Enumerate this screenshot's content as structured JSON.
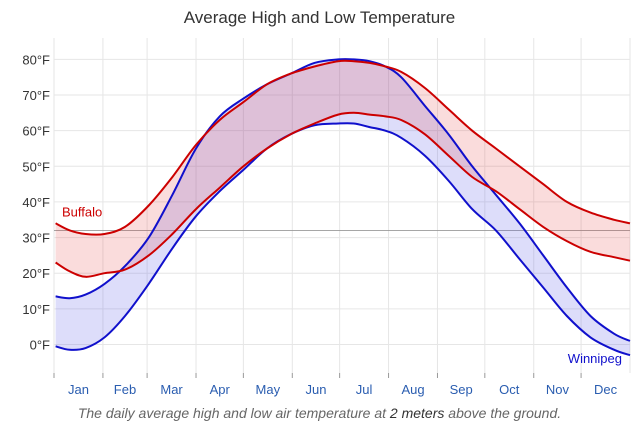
{
  "chart_data": {
    "type": "line",
    "title": "Average High and Low Temperature",
    "caption": {
      "prefix": "The daily average high and low air temperature at ",
      "emphasis": "2 meters",
      "suffix": " above the ground."
    },
    "y_unit_suffix": "°F",
    "ylim": [
      -8,
      86
    ],
    "y_ticks": [
      0,
      10,
      20,
      30,
      40,
      50,
      60,
      70,
      80
    ],
    "freezing_line": 32,
    "months": [
      "Jan",
      "Feb",
      "Mar",
      "Apr",
      "May",
      "Jun",
      "Jul",
      "Aug",
      "Sep",
      "Oct",
      "Nov",
      "Dec"
    ],
    "month_starts": [
      0,
      31,
      59,
      90,
      120,
      151,
      181,
      212,
      243,
      273,
      304,
      334,
      365
    ],
    "grid": true,
    "series": [
      {
        "name": "Buffalo",
        "color": "#cc0000",
        "fill": "rgba(230,60,60,0.18)",
        "label_position": "left",
        "x": [
          1,
          10,
          20,
          32,
          45,
          60,
          75,
          90,
          105,
          120,
          135,
          150,
          165,
          180,
          190,
          200,
          210,
          220,
          235,
          250,
          265,
          280,
          295,
          310,
          325,
          340,
          355,
          365
        ],
        "high": [
          34,
          32,
          31,
          31,
          33,
          39,
          47,
          56,
          63,
          68,
          73,
          76,
          78,
          79.5,
          79.5,
          79,
          78,
          76.5,
          72,
          66,
          60,
          55,
          50,
          45,
          40,
          37,
          35,
          34
        ],
        "low": [
          23,
          20.5,
          19,
          20,
          21,
          25,
          31,
          38,
          44,
          50,
          55,
          59,
          62,
          64.5,
          65,
          64.5,
          64,
          63,
          59,
          53,
          47,
          43,
          38,
          33,
          29,
          26,
          24.5,
          23.5
        ]
      },
      {
        "name": "Winnipeg",
        "color": "#1010cc",
        "fill": "rgba(100,100,230,0.22)",
        "label_position": "right",
        "x": [
          1,
          10,
          20,
          32,
          45,
          60,
          75,
          90,
          105,
          120,
          135,
          150,
          165,
          180,
          190,
          200,
          210,
          220,
          235,
          250,
          265,
          280,
          295,
          310,
          325,
          340,
          355,
          365
        ],
        "high": [
          13.5,
          13,
          14,
          17,
          22,
          30,
          42,
          55,
          64,
          69,
          73,
          76,
          79,
          80,
          80,
          79.5,
          78,
          75,
          67,
          59,
          50,
          42,
          34,
          25,
          16,
          8,
          3,
          1
        ],
        "low": [
          -0.5,
          -1.5,
          -1,
          2,
          8,
          17,
          27,
          36,
          43,
          49,
          55,
          59,
          61.5,
          62,
          62,
          61,
          60,
          58,
          53,
          46,
          38,
          32,
          24,
          16,
          8,
          2,
          -1.5,
          -3
        ]
      }
    ]
  }
}
